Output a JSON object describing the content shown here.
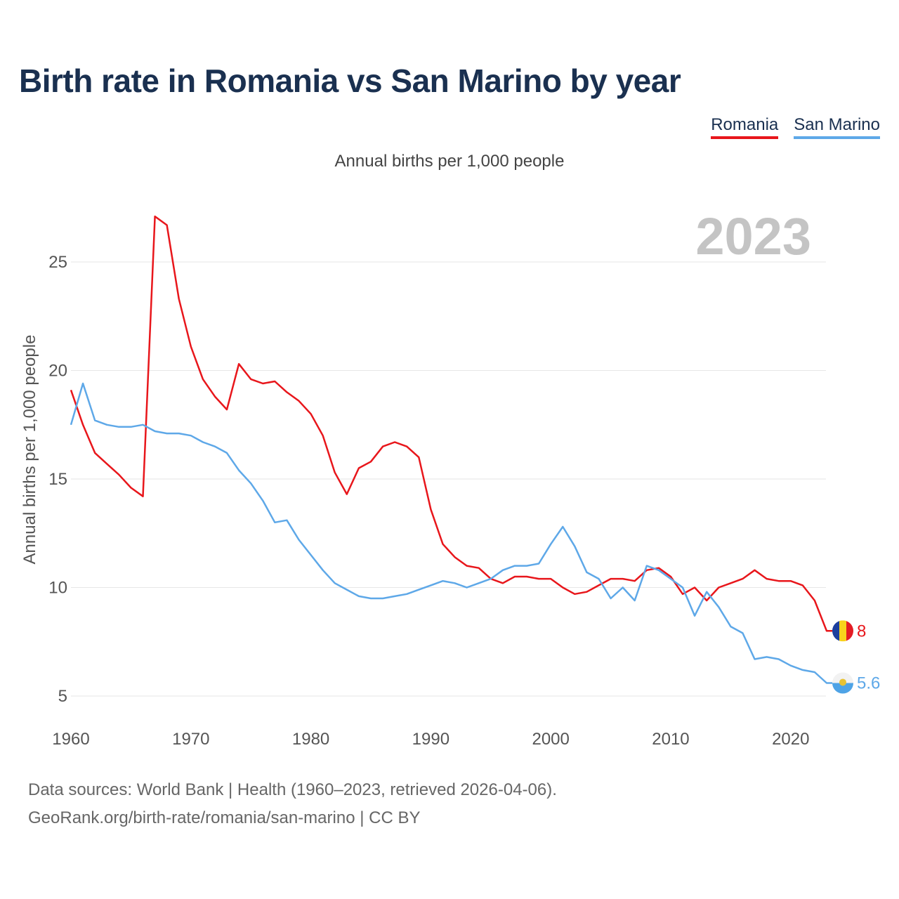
{
  "title": "Birth rate in Romania vs San Marino by year",
  "subtitle": "Annual births per 1,000 people",
  "year_label": "2023",
  "source_line1": "Data sources: World Bank | Health (1960–2023, retrieved 2026-04-06).",
  "source_line2": "GeoRank.org/birth-rate/romania/san-marino | CC BY",
  "legend": [
    {
      "name": "Romania",
      "color": "#e8161b"
    },
    {
      "name": "San Marino",
      "color": "#5ea8e8"
    }
  ],
  "chart_data": {
    "type": "line",
    "title": "Birth rate in Romania vs San Marino by year",
    "xlabel": "",
    "ylabel": "Annual births per 1,000 people",
    "xlim": [
      1960,
      2023
    ],
    "ylim": [
      5,
      27
    ],
    "xticks": [
      1960,
      1970,
      1980,
      1990,
      2000,
      2010,
      2020
    ],
    "yticks": [
      5,
      10,
      15,
      20,
      25
    ],
    "grid": true,
    "legend_position": "top-right",
    "series": [
      {
        "name": "Romania",
        "color": "#e8161b",
        "end_label": "8",
        "start_year": 1960,
        "values": [
          19.1,
          17.5,
          16.2,
          15.7,
          15.2,
          14.6,
          14.2,
          27.1,
          26.7,
          23.3,
          21.1,
          19.6,
          18.8,
          18.2,
          20.3,
          19.6,
          19.4,
          19.5,
          19.0,
          18.6,
          18.0,
          17.0,
          15.3,
          14.3,
          15.5,
          15.8,
          16.5,
          16.7,
          16.5,
          16.0,
          13.6,
          12.0,
          11.4,
          11.0,
          10.9,
          10.4,
          10.2,
          10.5,
          10.5,
          10.4,
          10.4,
          10.0,
          9.7,
          9.8,
          10.1,
          10.4,
          10.4,
          10.3,
          10.8,
          10.9,
          10.5,
          9.7,
          10.0,
          9.4,
          10.0,
          10.2,
          10.4,
          10.8,
          10.4,
          10.3,
          10.3,
          10.1,
          9.4,
          8.0
        ]
      },
      {
        "name": "San Marino",
        "color": "#5ea8e8",
        "end_label": "5.6",
        "start_year": 1960,
        "values": [
          17.5,
          19.4,
          17.7,
          17.5,
          17.4,
          17.4,
          17.5,
          17.2,
          17.1,
          17.1,
          17.0,
          16.7,
          16.5,
          16.2,
          15.4,
          14.8,
          14.0,
          13.0,
          13.1,
          12.2,
          11.5,
          10.8,
          10.2,
          9.9,
          9.6,
          9.5,
          9.5,
          9.6,
          9.7,
          9.9,
          10.1,
          10.3,
          10.2,
          10.0,
          10.2,
          10.4,
          10.8,
          11.0,
          11.0,
          11.1,
          12.0,
          12.8,
          11.9,
          10.7,
          10.4,
          9.5,
          10.0,
          9.4,
          11.0,
          10.8,
          10.4,
          10.0,
          8.7,
          9.8,
          9.1,
          8.2,
          7.9,
          6.7,
          6.8,
          6.7,
          6.4,
          6.2,
          6.1,
          5.6
        ]
      }
    ]
  }
}
